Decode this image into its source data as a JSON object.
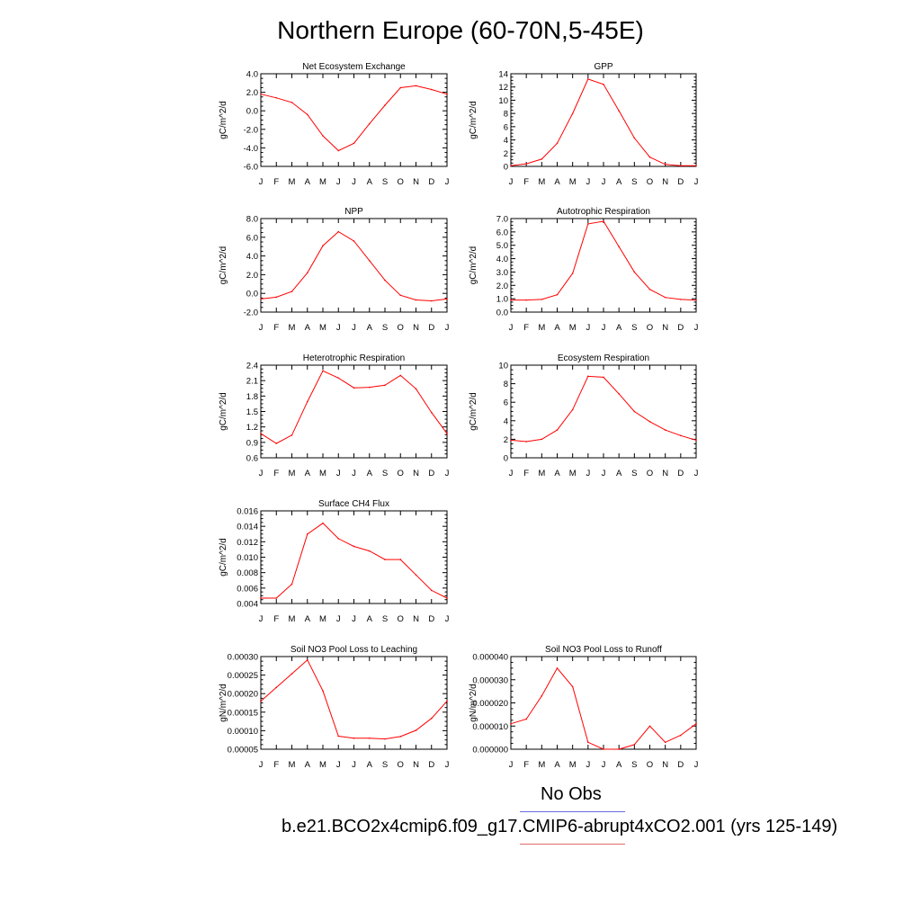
{
  "title": "Northern Europe (60-70N,5-45E)",
  "months": [
    "J",
    "F",
    "M",
    "A",
    "M",
    "J",
    "J",
    "A",
    "S",
    "O",
    "N",
    "D",
    "J"
  ],
  "legend": {
    "obs_label": "No Obs",
    "model_label": "b.e21.BCO2x4cmip6.f09_g17.CMIP6-abrupt4xCO2.001 (yrs 125-149)",
    "obs_color": "#6b6be0",
    "model_color": "#e06b6b"
  },
  "line_color": "#ff0000",
  "chart_data": [
    {
      "type": "line",
      "title": "Net Ecosystem Exchange",
      "ylabel": "gC/m^2/d",
      "ylim": [
        -6,
        4
      ],
      "yticks": [
        "4.0",
        "2.0",
        "0.0",
        "-2.0",
        "-4.0",
        "-6.0"
      ],
      "values": [
        1.8,
        1.4,
        0.9,
        -0.4,
        -2.7,
        -4.3,
        -3.5,
        -1.4,
        0.6,
        2.5,
        2.7,
        2.3,
        1.8
      ]
    },
    {
      "type": "line",
      "title": "GPP",
      "ylabel": "gC/m^2/d",
      "ylim": [
        0,
        14
      ],
      "yticks": [
        "14",
        "12",
        "10",
        "8",
        "6",
        "4",
        "2",
        "0"
      ],
      "values": [
        0.1,
        0.4,
        1.1,
        3.5,
        8.0,
        13.2,
        12.4,
        8.4,
        4.3,
        1.4,
        0.3,
        0.1,
        0.1
      ]
    },
    {
      "type": "line",
      "title": "NPP",
      "ylabel": "gC/m^2/d",
      "ylim": [
        -2,
        8
      ],
      "yticks": [
        "8.0",
        "6.0",
        "4.0",
        "2.0",
        "0.0",
        "-2.0"
      ],
      "values": [
        -0.6,
        -0.4,
        0.2,
        2.2,
        5.1,
        6.6,
        5.6,
        3.5,
        1.4,
        -0.2,
        -0.7,
        -0.8,
        -0.6
      ]
    },
    {
      "type": "line",
      "title": "Autotrophic Respiration",
      "ylabel": "gC/m^2/d",
      "ylim": [
        0,
        7
      ],
      "yticks": [
        "7.0",
        "6.0",
        "5.0",
        "4.0",
        "3.0",
        "2.0",
        "1.0",
        "0.0"
      ],
      "values": [
        0.9,
        0.9,
        0.95,
        1.3,
        2.9,
        6.6,
        6.8,
        4.9,
        3.0,
        1.7,
        1.1,
        0.95,
        0.9
      ]
    },
    {
      "type": "line",
      "title": "Heterotrophic Respiration",
      "ylabel": "gC/m^2/d",
      "ylim": [
        0.6,
        2.4
      ],
      "yticks": [
        "2.4",
        "2.1",
        "1.8",
        "1.5",
        "1.2",
        "0.9",
        "0.6"
      ],
      "values": [
        1.07,
        0.88,
        1.04,
        1.69,
        2.29,
        2.15,
        1.96,
        1.97,
        2.01,
        2.2,
        1.94,
        1.48,
        1.07
      ]
    },
    {
      "type": "line",
      "title": "Ecosystem Respiration",
      "ylabel": "gC/m^2/d",
      "ylim": [
        0,
        10
      ],
      "yticks": [
        "10",
        "8",
        "6",
        "4",
        "2",
        "0"
      ],
      "values": [
        1.9,
        1.75,
        2.0,
        3.0,
        5.2,
        8.8,
        8.7,
        6.9,
        5.0,
        3.9,
        3.0,
        2.4,
        1.9
      ]
    },
    {
      "type": "line",
      "title": "Surface CH4 Flux",
      "ylabel": "gC/m^2/d",
      "ylim": [
        0.004,
        0.016
      ],
      "yticks": [
        "0.016",
        "0.014",
        "0.012",
        "0.010",
        "0.008",
        "0.006",
        "0.004"
      ],
      "values": [
        0.0047,
        0.0047,
        0.0065,
        0.013,
        0.0144,
        0.0124,
        0.0114,
        0.0108,
        0.0097,
        0.0097,
        0.0077,
        0.0057,
        0.0047
      ]
    },
    {
      "type": "line",
      "title": "Soil NO3 Pool Loss to Leaching",
      "ylabel": "gN/m^2/d",
      "ylim": [
        5e-05,
        0.00032
      ],
      "yticks": [
        "0.00030",
        "0.00025",
        "0.00020",
        "0.00015",
        "0.00010",
        "0.00005"
      ],
      "values": [
        0.00019,
        0.00023,
        0.00027,
        0.00031,
        0.00022,
        8.8e-05,
        8.2e-05,
        8.2e-05,
        8e-05,
        8.7e-05,
        0.000105,
        0.00014,
        0.00019
      ]
    },
    {
      "type": "line",
      "title": "Soil NO3 Pool Loss to Runoff",
      "ylabel": "gN/m^2/d",
      "ylim": [
        0,
        4e-05
      ],
      "yticks": [
        "0.000040",
        "0.000030",
        "0.000020",
        "0.000010",
        "0.000000"
      ],
      "values": [
        1.1e-05,
        1.3e-05,
        2.3e-05,
        3.5e-05,
        2.7e-05,
        3e-06,
        0.0,
        0.0,
        2e-06,
        1e-05,
        3e-06,
        6e-06,
        1.1e-05
      ]
    }
  ]
}
